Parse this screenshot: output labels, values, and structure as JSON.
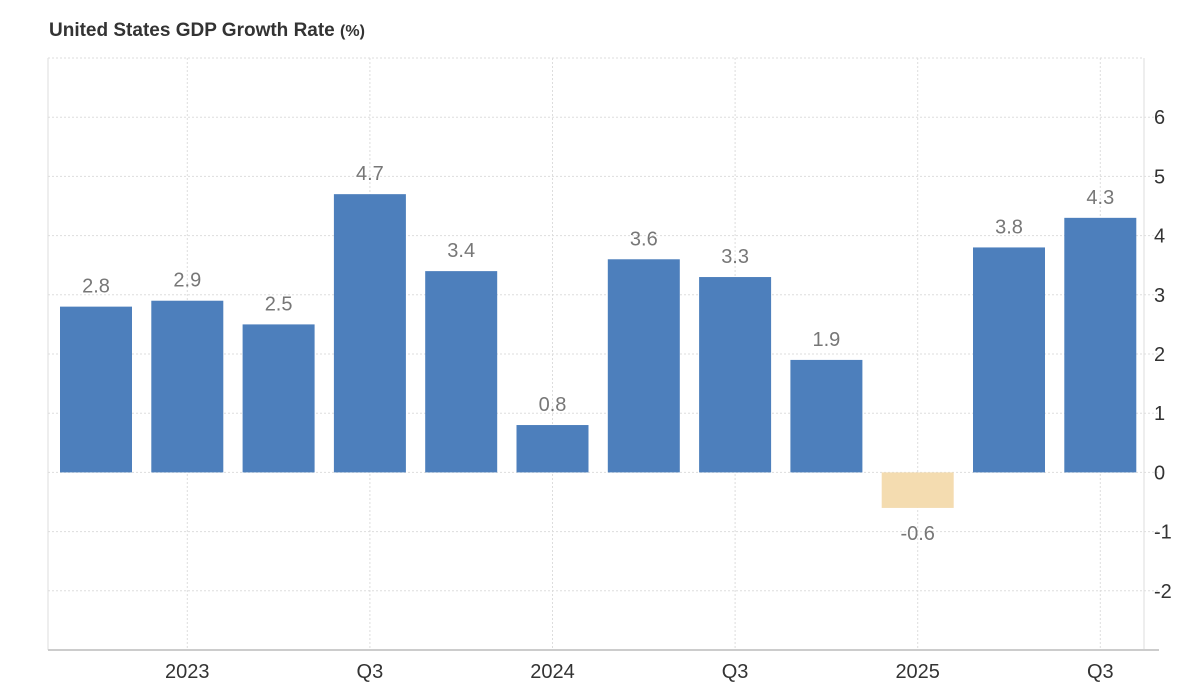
{
  "chart_data": {
    "type": "bar",
    "title": "United States GDP Growth Rate",
    "unit": "(%)",
    "values": [
      2.8,
      2.9,
      2.5,
      4.7,
      3.4,
      0.8,
      3.6,
      3.3,
      1.9,
      -0.6,
      3.8,
      4.3
    ],
    "x_ticks": [
      {
        "index": 1,
        "label": "2023"
      },
      {
        "index": 3,
        "label": "Q3"
      },
      {
        "index": 5,
        "label": "2024"
      },
      {
        "index": 7,
        "label": "Q3"
      },
      {
        "index": 9,
        "label": "2025"
      },
      {
        "index": 11,
        "label": "Q3"
      }
    ],
    "y_ticks": [
      -2,
      -1,
      0,
      1,
      2,
      3,
      4,
      5,
      6
    ],
    "ylim": [
      -3,
      7
    ],
    "y_axis_position": "right",
    "grid": true,
    "colors": {
      "positive": "#4d7fbc",
      "negative": "#f4dcb0",
      "label": "#777777",
      "grid": "#dddddd"
    }
  }
}
